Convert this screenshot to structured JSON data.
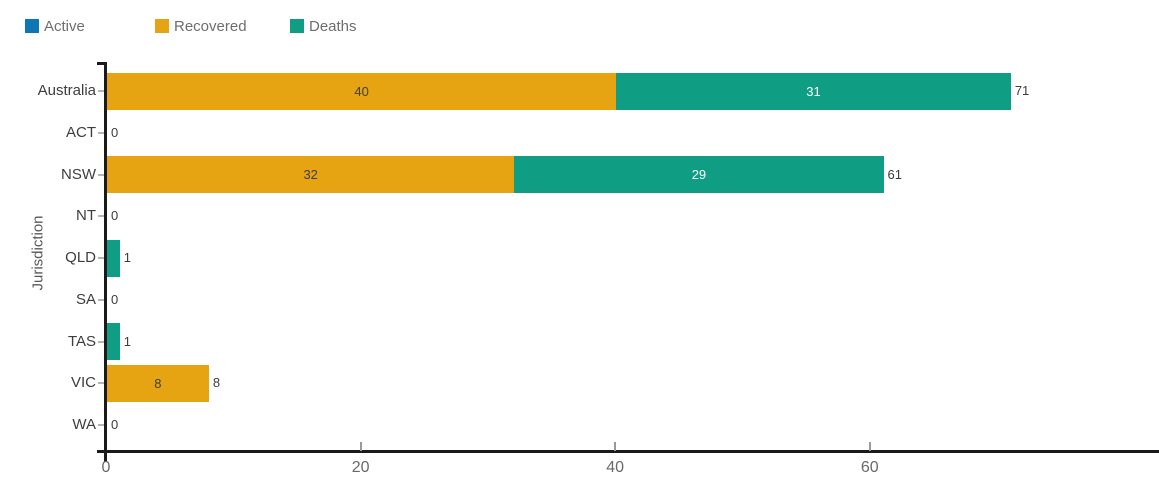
{
  "legend": {
    "items": [
      {
        "label": "Active",
        "color": "#0d76b4"
      },
      {
        "label": "Recovered",
        "color": "#e6a312"
      },
      {
        "label": "Deaths",
        "color": "#0f9e84"
      }
    ]
  },
  "chart_data": {
    "type": "bar",
    "orientation": "horizontal",
    "stacked": true,
    "title": "",
    "xlabel": "",
    "ylabel": "Jurisdiction",
    "categories": [
      "Australia",
      "ACT",
      "NSW",
      "NT",
      "QLD",
      "SA",
      "TAS",
      "VIC",
      "WA"
    ],
    "series": [
      {
        "name": "Active",
        "color": "#0d76b4",
        "label_color": "#ffffff",
        "values": [
          0,
          0,
          0,
          0,
          0,
          0,
          0,
          0,
          0
        ]
      },
      {
        "name": "Recovered",
        "color": "#e6a312",
        "label_color": "#3f3f3f",
        "values": [
          40,
          0,
          32,
          0,
          0,
          0,
          0,
          8,
          0
        ]
      },
      {
        "name": "Deaths",
        "color": "#0f9e84",
        "label_color": "#ffffff",
        "values": [
          31,
          0,
          29,
          0,
          1,
          0,
          1,
          0,
          0
        ]
      }
    ],
    "totals": [
      71,
      0,
      61,
      0,
      1,
      0,
      1,
      8,
      0
    ],
    "xticks": [
      0,
      20,
      40,
      60
    ],
    "xlim": [
      0,
      82.5
    ],
    "grid": false,
    "legend_position": "top"
  }
}
